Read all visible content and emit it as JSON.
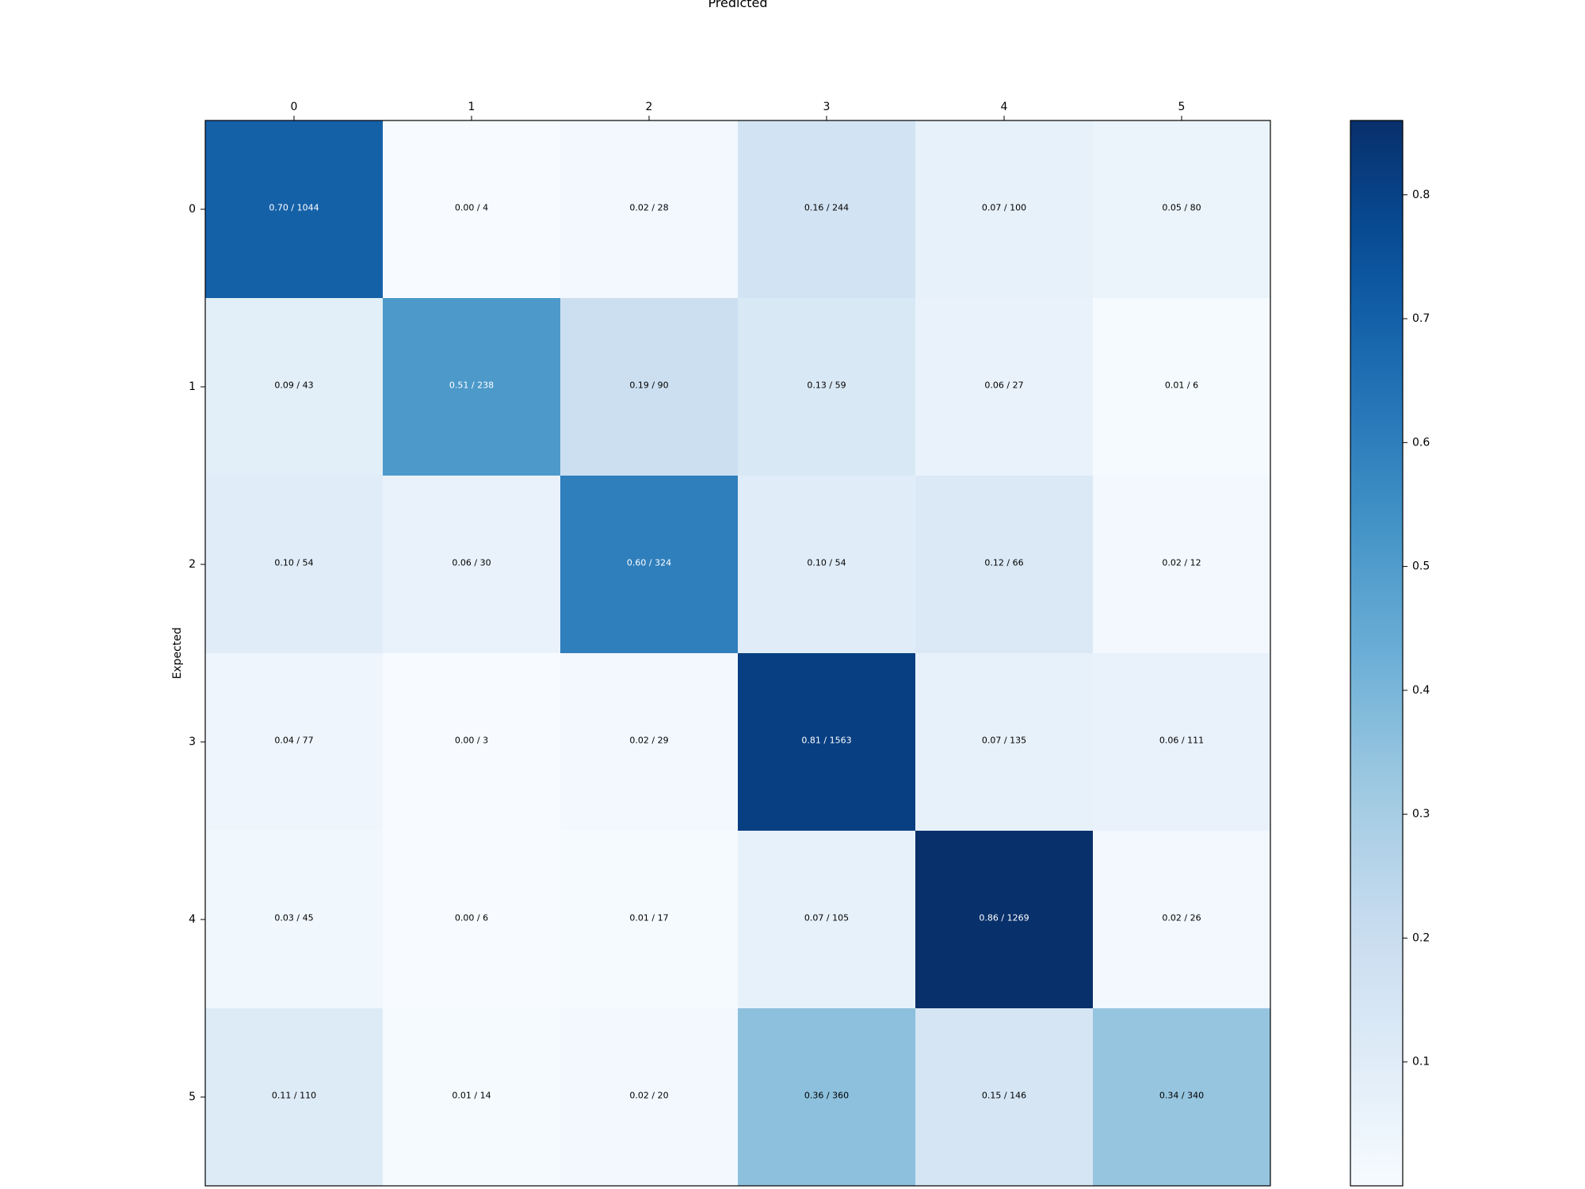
{
  "chart_data": {
    "type": "heatmap",
    "xlabel": "Predicted",
    "ylabel": "Expected",
    "x_categories": [
      "0",
      "1",
      "2",
      "3",
      "4",
      "5"
    ],
    "y_categories": [
      "0",
      "1",
      "2",
      "3",
      "4",
      "5"
    ],
    "values": [
      [
        0.7,
        0.0,
        0.02,
        0.16,
        0.07,
        0.05
      ],
      [
        0.09,
        0.51,
        0.19,
        0.13,
        0.06,
        0.01
      ],
      [
        0.1,
        0.06,
        0.6,
        0.1,
        0.12,
        0.02
      ],
      [
        0.04,
        0.0,
        0.02,
        0.81,
        0.07,
        0.06
      ],
      [
        0.03,
        0.0,
        0.01,
        0.07,
        0.86,
        0.02
      ],
      [
        0.11,
        0.01,
        0.02,
        0.36,
        0.15,
        0.34
      ]
    ],
    "counts": [
      [
        1044,
        4,
        28,
        244,
        100,
        80
      ],
      [
        43,
        238,
        90,
        59,
        27,
        6
      ],
      [
        54,
        30,
        324,
        54,
        66,
        12
      ],
      [
        77,
        3,
        29,
        1563,
        135,
        111
      ],
      [
        45,
        6,
        17,
        105,
        1269,
        26
      ],
      [
        110,
        14,
        20,
        360,
        146,
        340
      ]
    ],
    "cell_labels": [
      [
        "0.70 / 1044",
        "0.00 / 4",
        "0.02 / 28",
        "0.16 / 244",
        "0.07 / 100",
        "0.05 / 80"
      ],
      [
        "0.09 / 43",
        "0.51 / 238",
        "0.19 / 90",
        "0.13 / 59",
        "0.06 / 27",
        "0.01 / 6"
      ],
      [
        "0.10 / 54",
        "0.06 / 30",
        "0.60 / 324",
        "0.10 / 54",
        "0.12 / 66",
        "0.02 / 12"
      ],
      [
        "0.04 / 77",
        "0.00 / 3",
        "0.02 / 29",
        "0.81 / 1563",
        "0.07 / 135",
        "0.06 / 111"
      ],
      [
        "0.03 / 45",
        "0.00 / 6",
        "0.01 / 17",
        "0.07 / 105",
        "0.86 / 1269",
        "0.02 / 26"
      ],
      [
        "0.11 / 110",
        "0.01 / 14",
        "0.02 / 20",
        "0.36 / 360",
        "0.15 / 146",
        "0.34 / 340"
      ]
    ],
    "colormap": "Blues",
    "colorbar": {
      "range": [
        0.0,
        0.86
      ],
      "ticks": [
        0.1,
        0.2,
        0.3,
        0.4,
        0.5,
        0.6,
        0.7,
        0.8
      ],
      "tick_labels": [
        "0.1",
        "0.2",
        "0.3",
        "0.4",
        "0.5",
        "0.6",
        "0.7",
        "0.8"
      ],
      "placement": "right"
    },
    "x_axis_position": "top",
    "grid": false
  }
}
